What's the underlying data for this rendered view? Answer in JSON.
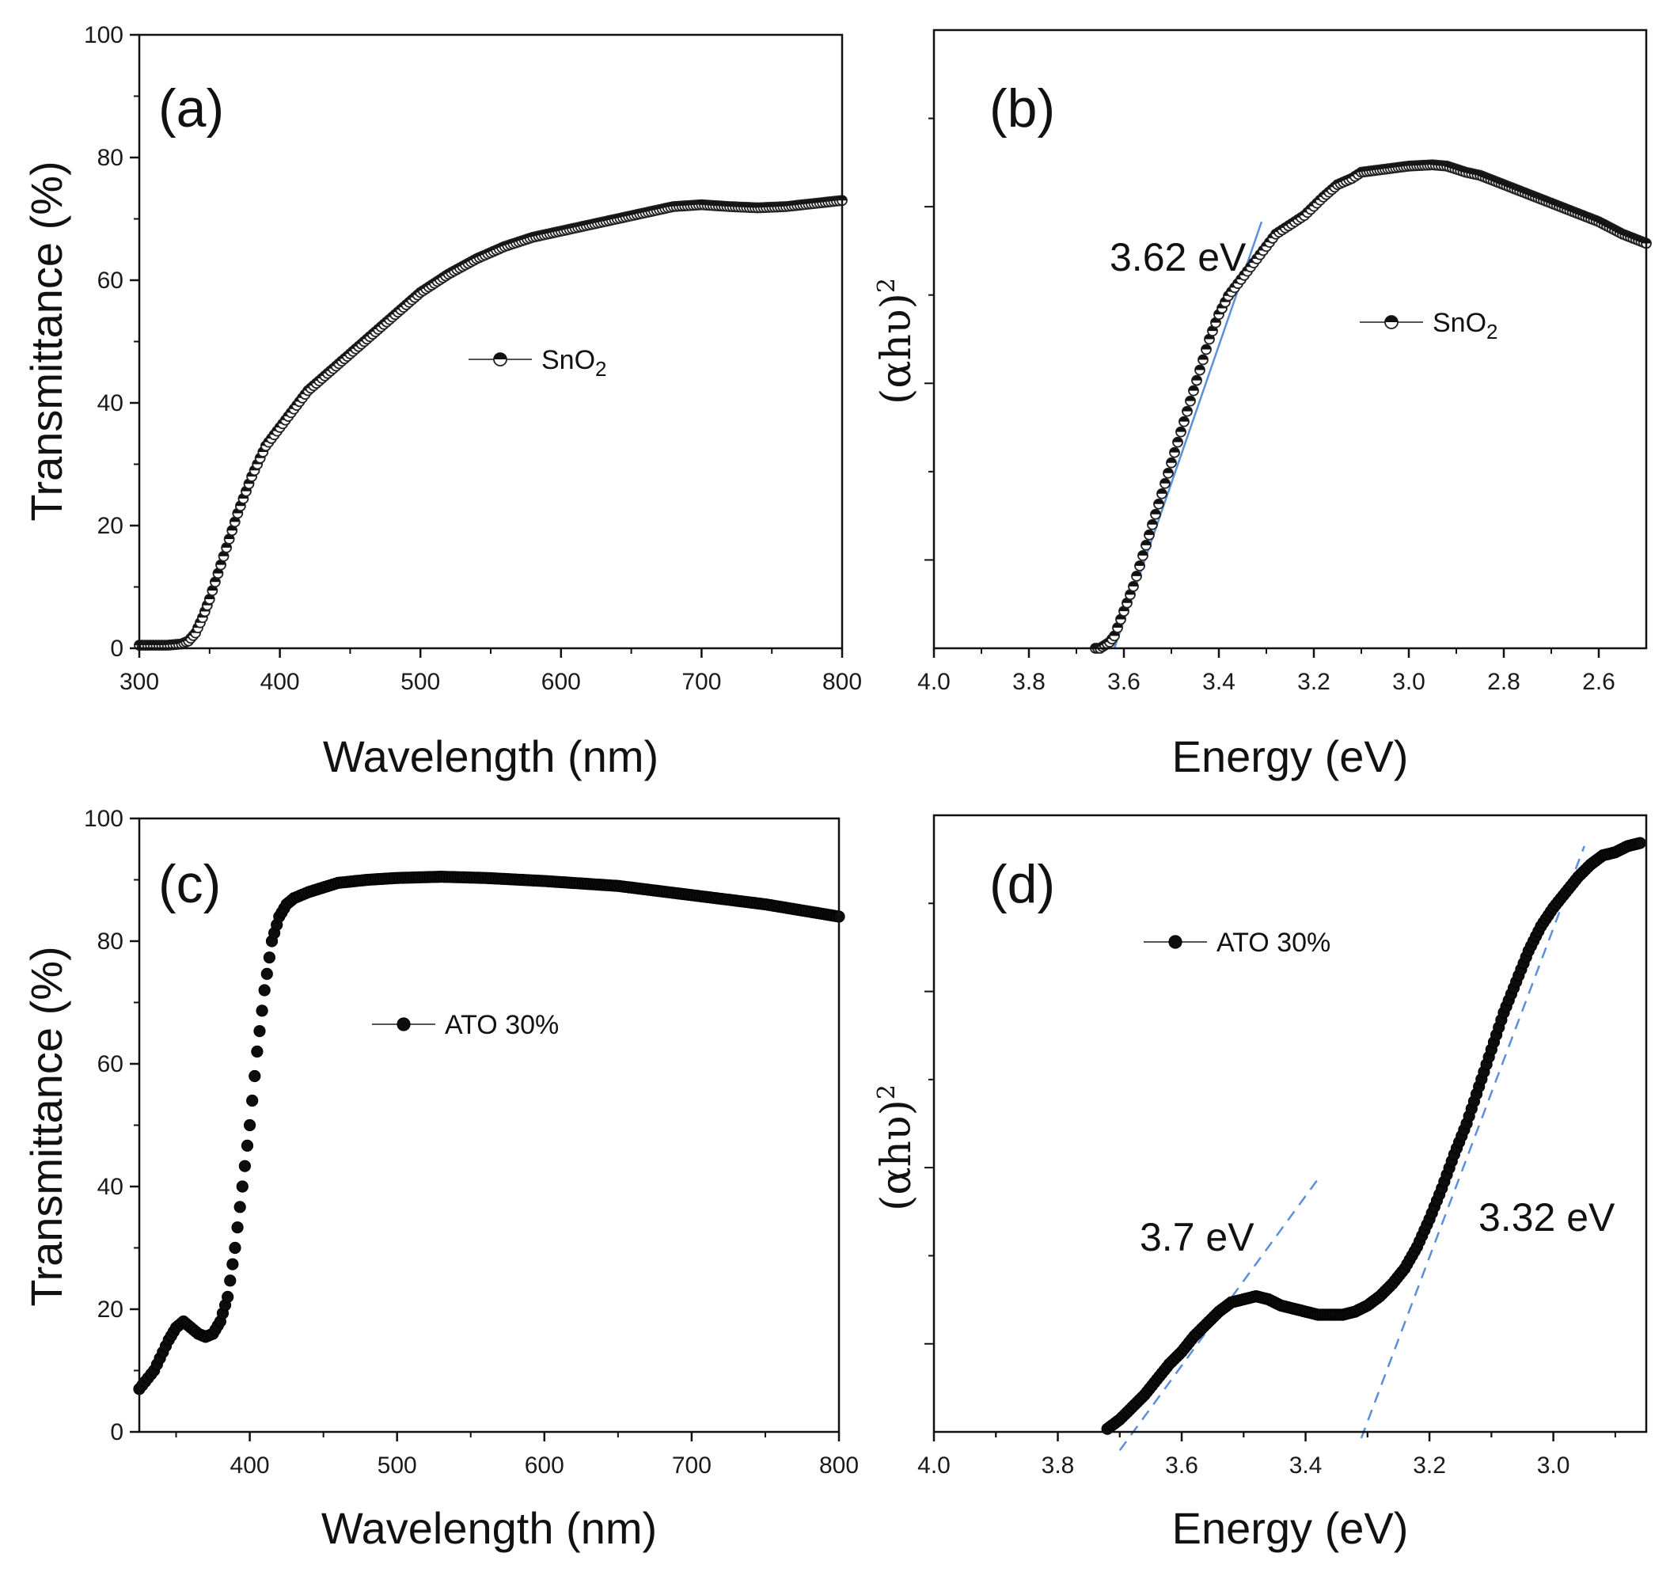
{
  "chart_data": [
    {
      "id": "a",
      "type": "scatter",
      "panel_label": "(a)",
      "xlabel": "Wavelength (nm)",
      "ylabel": "Transmittance (%)",
      "xlim": [
        300,
        800
      ],
      "ylim": [
        0,
        100
      ],
      "xticks": [
        "300",
        "400",
        "500",
        "600",
        "700",
        "800"
      ],
      "yticks": [
        "0",
        "20",
        "40",
        "60",
        "80",
        "100"
      ],
      "legend": {
        "main": "SnO",
        "sub": "2",
        "placement": "center"
      },
      "series": [
        {
          "name": "SnO2",
          "marker_fill": "half",
          "x": [
            300,
            320,
            330,
            335,
            340,
            345,
            350,
            360,
            370,
            380,
            390,
            400,
            420,
            440,
            460,
            480,
            500,
            520,
            540,
            560,
            580,
            600,
            620,
            640,
            660,
            680,
            700,
            720,
            740,
            760,
            780,
            800
          ],
          "y": [
            0.5,
            0.5,
            0.7,
            1.2,
            2.5,
            5,
            8,
            15,
            22,
            28,
            33,
            36,
            42,
            46,
            50,
            54,
            58,
            61,
            63.5,
            65.5,
            67,
            68,
            69,
            70,
            71,
            72,
            72.3,
            72,
            71.8,
            72,
            72.5,
            73
          ]
        }
      ]
    },
    {
      "id": "b",
      "type": "scatter",
      "panel_label": "(b)",
      "xlabel": "Energy (eV)",
      "ylabel_main": "(αhυ)",
      "ylabel_sup": "2",
      "xlim": [
        4.0,
        2.5
      ],
      "ylim": [
        0,
        1
      ],
      "xticks": [
        "4.0",
        "3.8",
        "3.6",
        "3.4",
        "3.2",
        "3.0",
        "2.8",
        "2.6"
      ],
      "yticks": [],
      "legend": {
        "main": "SnO",
        "sub": "2",
        "placement": "center-right"
      },
      "annotations": [
        {
          "text": "3.62 eV"
        }
      ],
      "fit_lines": [
        {
          "x": [
            3.62,
            3.31
          ],
          "y": [
            0,
            0.69
          ],
          "style": "solid"
        }
      ],
      "series": [
        {
          "name": "SnO2",
          "marker_fill": "half",
          "x": [
            3.66,
            3.65,
            3.64,
            3.63,
            3.62,
            3.6,
            3.58,
            3.56,
            3.54,
            3.52,
            3.5,
            3.48,
            3.46,
            3.44,
            3.42,
            3.4,
            3.38,
            3.36,
            3.34,
            3.32,
            3.3,
            3.28,
            3.26,
            3.24,
            3.22,
            3.2,
            3.18,
            3.15,
            3.12,
            3.1,
            3.05,
            3.0,
            2.95,
            2.92,
            2.88,
            2.85,
            2.8,
            2.75,
            2.7,
            2.65,
            2.6,
            2.55,
            2.5
          ],
          "y": [
            0.0,
            0.0,
            0.005,
            0.01,
            0.02,
            0.06,
            0.1,
            0.15,
            0.2,
            0.25,
            0.3,
            0.35,
            0.4,
            0.45,
            0.5,
            0.54,
            0.57,
            0.59,
            0.61,
            0.63,
            0.65,
            0.67,
            0.68,
            0.69,
            0.7,
            0.715,
            0.73,
            0.75,
            0.76,
            0.77,
            0.775,
            0.78,
            0.782,
            0.78,
            0.77,
            0.765,
            0.75,
            0.735,
            0.72,
            0.705,
            0.69,
            0.67,
            0.655
          ]
        }
      ]
    },
    {
      "id": "c",
      "type": "scatter",
      "panel_label": "(c)",
      "xlabel": "Wavelength (nm)",
      "ylabel": "Transmittance (%)",
      "xlim": [
        325,
        800
      ],
      "ylim": [
        0,
        100
      ],
      "xticks": [
        "400",
        "500",
        "600",
        "700",
        "800"
      ],
      "yticks": [
        "0",
        "20",
        "40",
        "60",
        "80",
        "100"
      ],
      "legend": {
        "main": "ATO 30%",
        "sub": "",
        "placement": "center"
      },
      "series": [
        {
          "name": "ATO 30%",
          "marker_fill": "solid",
          "x": [
            325,
            335,
            345,
            350,
            355,
            360,
            365,
            370,
            375,
            380,
            385,
            390,
            395,
            400,
            405,
            410,
            415,
            420,
            425,
            430,
            440,
            460,
            480,
            500,
            530,
            560,
            600,
            650,
            700,
            750,
            800
          ],
          "y": [
            7,
            10,
            15,
            17,
            18,
            17,
            16,
            15.5,
            16,
            18,
            22,
            30,
            40,
            50,
            62,
            72,
            80,
            84,
            86,
            87,
            88,
            89.5,
            90,
            90.3,
            90.5,
            90.3,
            89.8,
            89,
            87.5,
            86,
            84
          ]
        }
      ]
    },
    {
      "id": "d",
      "type": "scatter",
      "panel_label": "(d)",
      "xlabel": "Energy (eV)",
      "ylabel_main": "(αhυ)",
      "ylabel_sup": "2",
      "xlim": [
        4.0,
        2.85
      ],
      "ylim": [
        0,
        1
      ],
      "xticks": [
        "4.0",
        "3.8",
        "3.6",
        "3.4",
        "3.2",
        "3.0"
      ],
      "yticks": [],
      "legend": {
        "main": "ATO 30%",
        "sub": "",
        "placement": "top-left"
      },
      "annotations": [
        {
          "text": "3.7 eV"
        },
        {
          "text": "3.32 eV"
        }
      ],
      "fit_lines": [
        {
          "x": [
            3.7,
            3.38
          ],
          "y": [
            -0.03,
            0.41
          ],
          "style": "dashed"
        },
        {
          "x": [
            3.31,
            2.95
          ],
          "y": [
            -0.01,
            0.95
          ],
          "style": "dashed"
        }
      ],
      "series": [
        {
          "name": "ATO 30%",
          "marker_fill": "solid",
          "x": [
            3.72,
            3.7,
            3.68,
            3.66,
            3.64,
            3.62,
            3.6,
            3.58,
            3.56,
            3.54,
            3.52,
            3.5,
            3.48,
            3.46,
            3.44,
            3.42,
            3.4,
            3.38,
            3.36,
            3.34,
            3.32,
            3.3,
            3.28,
            3.26,
            3.24,
            3.22,
            3.2,
            3.18,
            3.16,
            3.14,
            3.12,
            3.1,
            3.08,
            3.06,
            3.04,
            3.02,
            3.0,
            2.98,
            2.96,
            2.94,
            2.92,
            2.9,
            2.88,
            2.86
          ],
          "y": [
            0.005,
            0.02,
            0.04,
            0.06,
            0.085,
            0.11,
            0.13,
            0.155,
            0.175,
            0.195,
            0.21,
            0.215,
            0.22,
            0.215,
            0.205,
            0.2,
            0.195,
            0.19,
            0.19,
            0.19,
            0.195,
            0.205,
            0.22,
            0.24,
            0.265,
            0.3,
            0.345,
            0.395,
            0.45,
            0.5,
            0.56,
            0.62,
            0.68,
            0.73,
            0.78,
            0.82,
            0.85,
            0.875,
            0.9,
            0.92,
            0.935,
            0.94,
            0.95,
            0.955
          ]
        }
      ]
    }
  ]
}
